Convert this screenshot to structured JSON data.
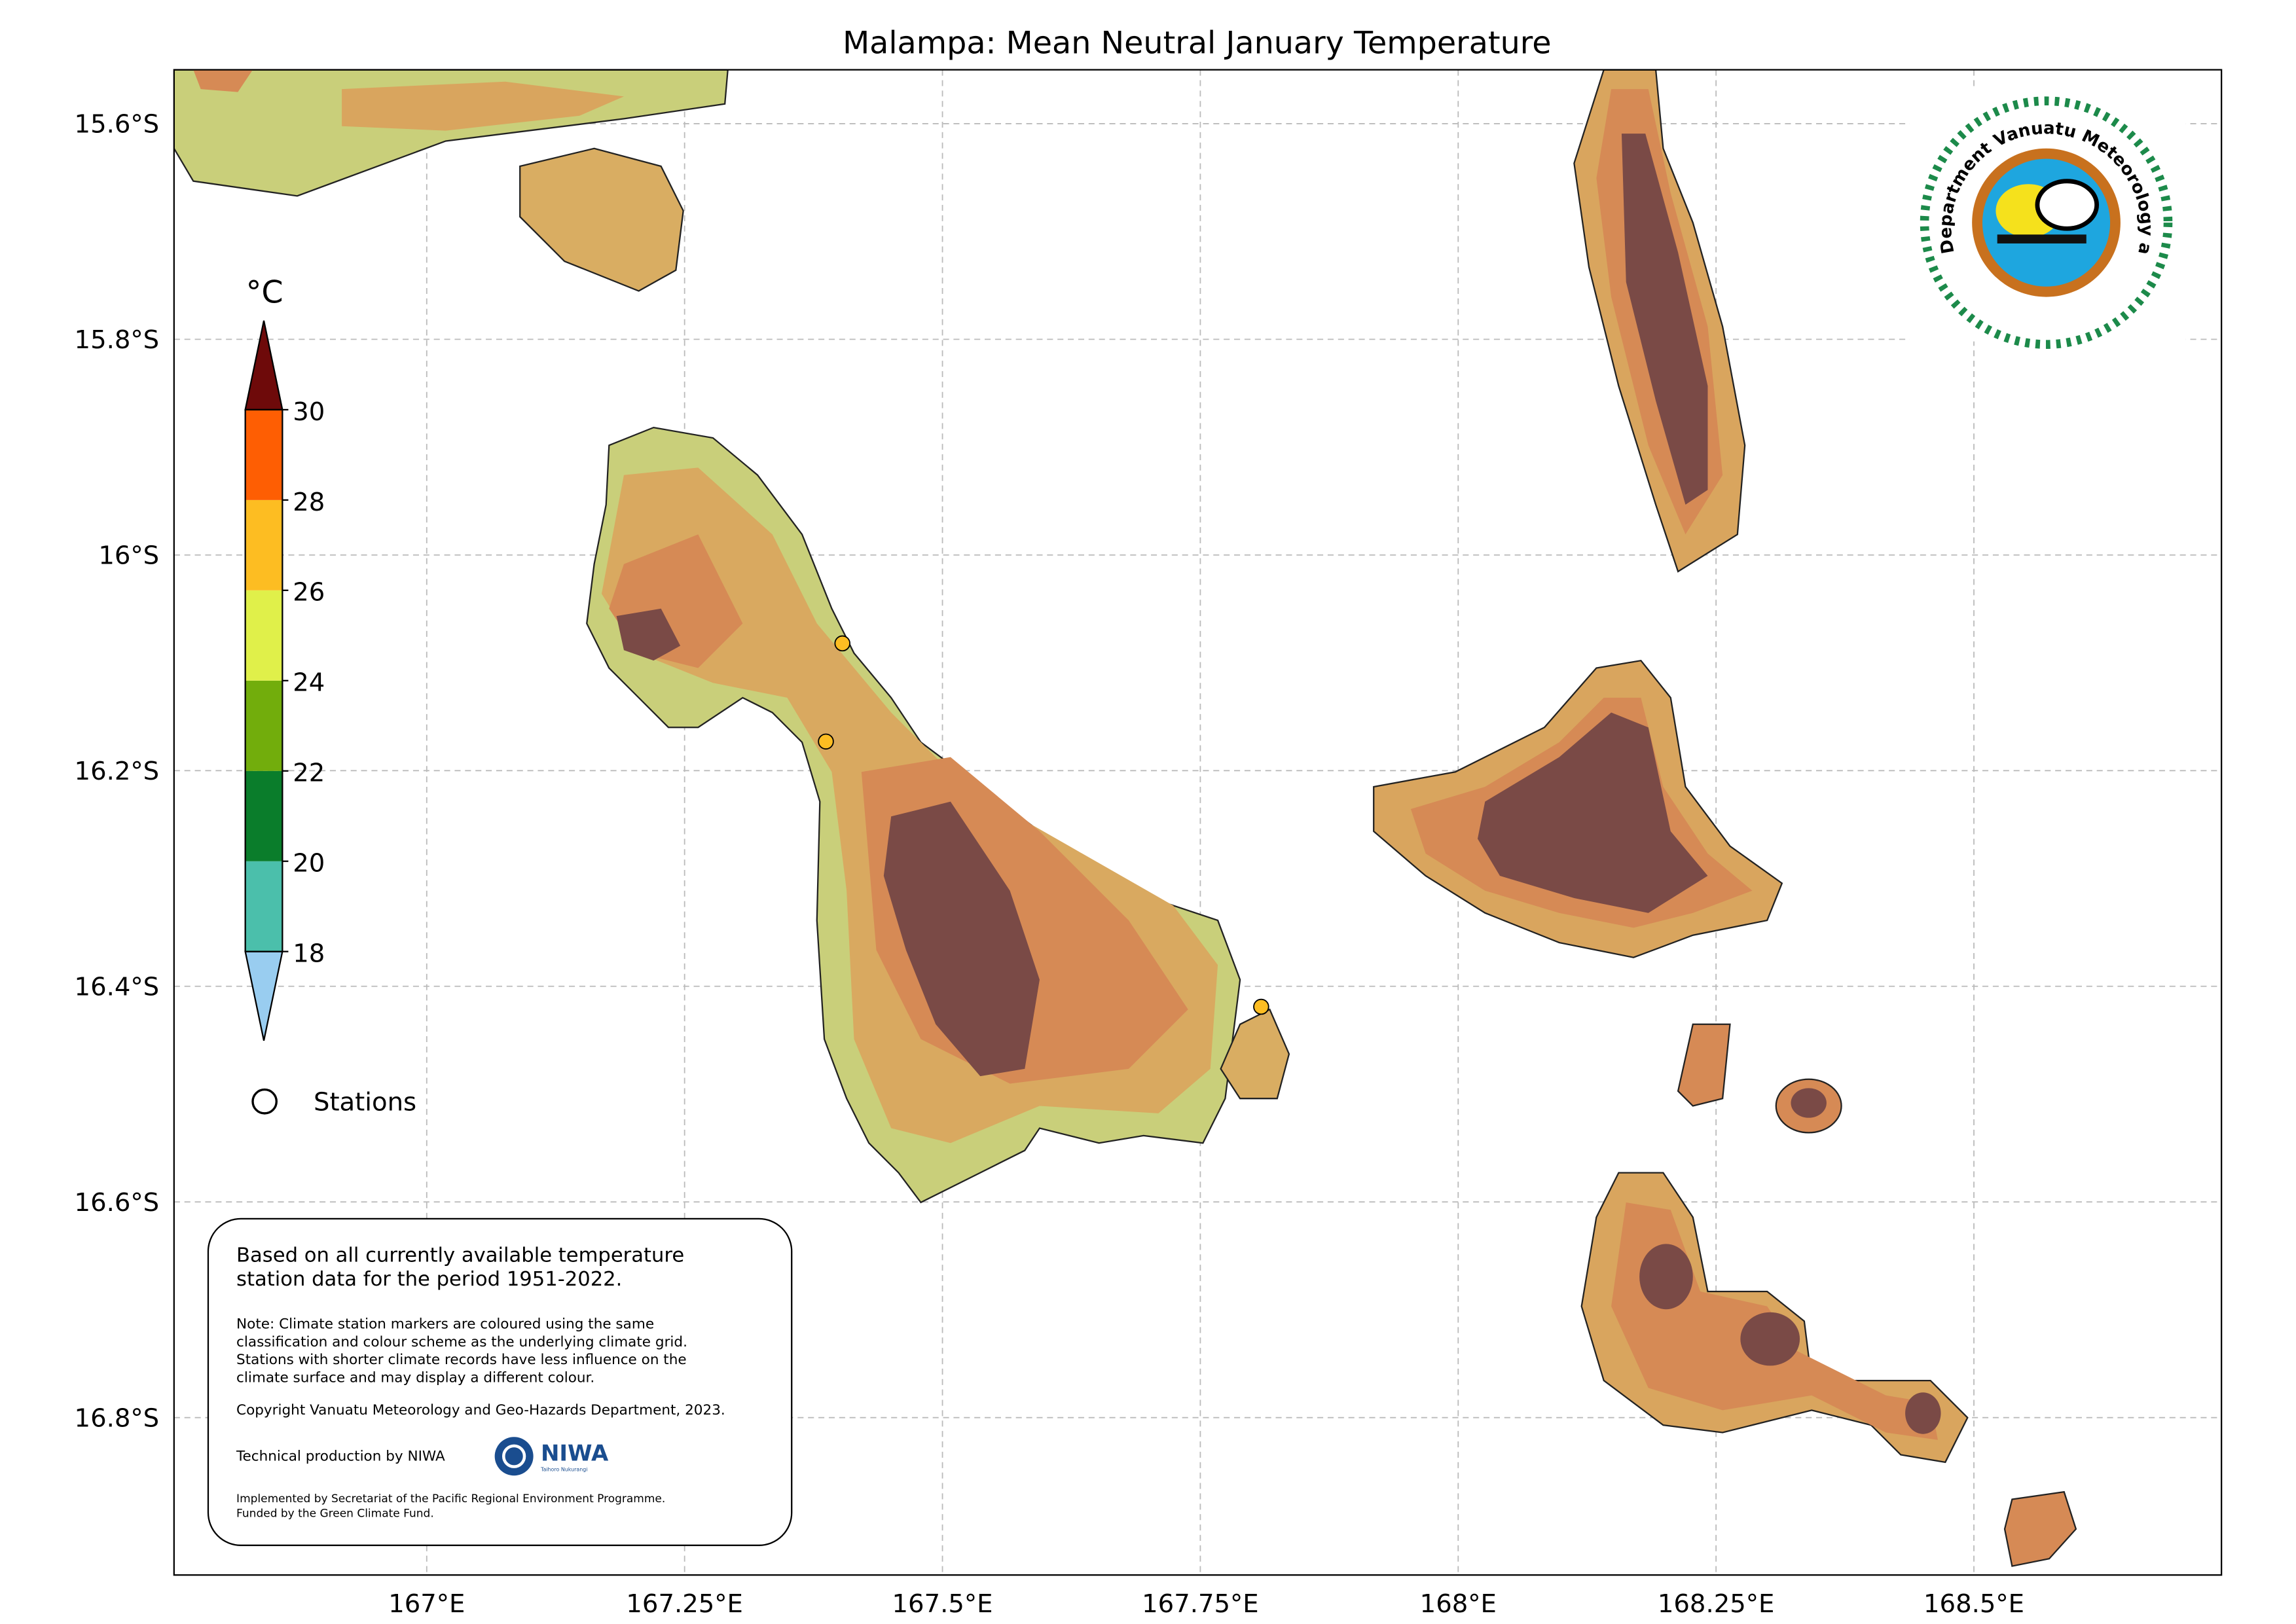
{
  "chart_data": {
    "type": "map",
    "title": "Malampa: Mean Neutral January Temperature",
    "xlim": [
      166.755,
      168.74
    ],
    "ylim": [
      -16.946,
      -15.55
    ],
    "xticks": [
      {
        "value": 167,
        "label": "167°E"
      },
      {
        "value": 167.25,
        "label": "167.25°E"
      },
      {
        "value": 167.5,
        "label": "167.5°E"
      },
      {
        "value": 167.75,
        "label": "167.75°E"
      },
      {
        "value": 168,
        "label": "168°E"
      },
      {
        "value": 168.25,
        "label": "168.25°E"
      },
      {
        "value": 168.5,
        "label": "168.5°E"
      }
    ],
    "yticks": [
      {
        "value": -15.6,
        "label": "15.6°S"
      },
      {
        "value": -15.8,
        "label": "15.8°S"
      },
      {
        "value": -16,
        "label": "16°S"
      },
      {
        "value": -16.2,
        "label": "16.2°S"
      },
      {
        "value": -16.4,
        "label": "16.4°S"
      },
      {
        "value": -16.6,
        "label": "16.6°S"
      },
      {
        "value": -16.8,
        "label": "16.8°S"
      }
    ],
    "grid": true,
    "colorbar": {
      "unit": "°C",
      "boundaries": [
        18,
        20,
        22,
        24,
        26,
        28,
        30
      ],
      "colors": [
        "#4bbfab",
        "#0a7d2b",
        "#72ad0c",
        "#e0f04a",
        "#fdbd22",
        "#fe5e03"
      ],
      "under_color": "#99cdf0",
      "over_color": "#6e0a0a"
    },
    "legend": {
      "label": "Stations"
    },
    "stations": [
      {
        "lon": 167.403,
        "lat": -16.082,
        "color": "#fdbd22"
      },
      {
        "lon": 167.387,
        "lat": -16.173,
        "color": "#fdbd22"
      },
      {
        "lon": 167.809,
        "lat": -16.419,
        "color": "#fdbd22"
      }
    ]
  },
  "info_box": {
    "summary": [
      "Based on all currently available temperature",
      "station data for the period 1951-2022."
    ],
    "note": [
      "Note: Climate station markers are coloured using the same",
      "classification and colour scheme as the underlying climate grid.",
      "Stations with shorter climate records have less influence on the",
      "climate surface and may display a different colour."
    ],
    "copyright": "Copyright Vanuatu Meteorology and Geo-Hazards Department, 2023.",
    "production": "Technical production by NIWA",
    "niwa": "NIWA",
    "niwa_tagline": "Taihoro Nukurangi",
    "funding": [
      "Implemented by Secretariat of the Pacific Regional Environment Programme.",
      "Funded by the Green Climate Fund."
    ]
  },
  "logo": {
    "text": "Department Vanuatu Meteorology and Geo-Hazards"
  }
}
